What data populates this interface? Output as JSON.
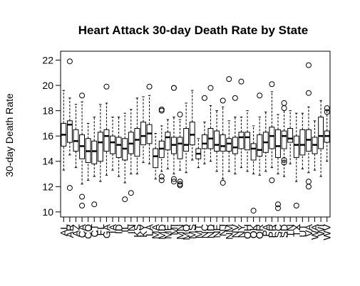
{
  "chart_data": {
    "type": "boxplot",
    "title": "Heart Attack 30-day Death Rate by State",
    "y_label": "30-day Death Rate",
    "categories": [
      "AL",
      "AR",
      "AZ",
      "CA",
      "CO",
      "CT",
      "FL",
      "GA",
      "IA",
      "ID",
      "IL",
      "IN",
      "KS",
      "KY",
      "LA",
      "MA",
      "MD",
      "ME",
      "MI",
      "MN",
      "MO",
      "MS",
      "MT",
      "NC",
      "ND",
      "NE",
      "NJ",
      "NM",
      "NV",
      "NY",
      "OH",
      "OK",
      "OR",
      "PA",
      "PR",
      "SC",
      "SD",
      "TN",
      "TX",
      "UT",
      "VA",
      "WA",
      "WI",
      "WV"
    ],
    "boxes": [
      {
        "min": 13.3,
        "q1": 15.2,
        "median": 16.1,
        "q3": 17.0,
        "max": 19.6,
        "outliers": []
      },
      {
        "min": 14.5,
        "q1": 15.5,
        "median": 16.9,
        "q3": 17.2,
        "max": 19.0,
        "outliers": [
          21.9,
          11.9
        ]
      },
      {
        "min": 13.5,
        "q1": 14.8,
        "median": 15.6,
        "q3": 16.5,
        "max": 18.5,
        "outliers": []
      },
      {
        "min": 12.2,
        "q1": 14.2,
        "median": 15.2,
        "q3": 16.1,
        "max": 18.7,
        "outliers": [
          19.2,
          11.2,
          10.5
        ]
      },
      {
        "min": 12.5,
        "q1": 13.9,
        "median": 14.8,
        "q3": 15.8,
        "max": 17.0,
        "outliers": []
      },
      {
        "min": 12.8,
        "q1": 13.8,
        "median": 14.8,
        "q3": 15.6,
        "max": 17.5,
        "outliers": [
          10.6
        ]
      },
      {
        "min": 12.4,
        "q1": 14.0,
        "median": 15.5,
        "q3": 16.3,
        "max": 18.5,
        "outliers": []
      },
      {
        "min": 12.9,
        "q1": 14.8,
        "median": 16.0,
        "q3": 16.5,
        "max": 18.6,
        "outliers": [
          19.9
        ]
      },
      {
        "min": 13.3,
        "q1": 14.6,
        "median": 15.5,
        "q3": 16.0,
        "max": 17.5,
        "outliers": []
      },
      {
        "min": 12.8,
        "q1": 14.3,
        "median": 15.3,
        "q3": 15.9,
        "max": 17.5,
        "outliers": []
      },
      {
        "min": 12.3,
        "q1": 14.1,
        "median": 15.0,
        "q3": 15.8,
        "max": 17.8,
        "outliers": [
          11.0
        ]
      },
      {
        "min": 13.0,
        "q1": 14.6,
        "median": 15.4,
        "q3": 16.3,
        "max": 18.1,
        "outliers": [
          11.5
        ]
      },
      {
        "min": 13.0,
        "q1": 14.4,
        "median": 15.7,
        "q3": 16.6,
        "max": 19.0,
        "outliers": []
      },
      {
        "min": 13.9,
        "q1": 15.3,
        "median": 16.0,
        "q3": 17.1,
        "max": 19.1,
        "outliers": []
      },
      {
        "min": 13.8,
        "q1": 15.4,
        "median": 16.2,
        "q3": 16.9,
        "max": 19.2,
        "outliers": [
          19.9
        ]
      },
      {
        "min": 12.6,
        "q1": 13.5,
        "median": 14.4,
        "q3": 15.0,
        "max": 16.2,
        "outliers": []
      },
      {
        "min": 13.2,
        "q1": 14.3,
        "median": 15.0,
        "q3": 15.6,
        "max": 16.8,
        "outliers": [
          18.1,
          18.0,
          12.8,
          12.5
        ]
      },
      {
        "min": 13.4,
        "q1": 14.9,
        "median": 15.9,
        "q3": 16.3,
        "max": 17.3,
        "outliers": []
      },
      {
        "min": 13.0,
        "q1": 14.6,
        "median": 15.3,
        "q3": 15.9,
        "max": 17.5,
        "outliers": [
          19.8,
          19.8,
          12.6,
          12.4
        ]
      },
      {
        "min": 13.3,
        "q1": 14.2,
        "median": 15.4,
        "q3": 15.9,
        "max": 17.3,
        "outliers": [
          17.7,
          12.4,
          12.2,
          12.1
        ]
      },
      {
        "min": 13.1,
        "q1": 14.8,
        "median": 15.3,
        "q3": 16.6,
        "max": 18.6,
        "outliers": []
      },
      {
        "min": 14.1,
        "q1": 15.3,
        "median": 16.1,
        "q3": 17.1,
        "max": 19.6,
        "outliers": []
      },
      {
        "min": 13.5,
        "q1": 14.2,
        "median": 14.6,
        "q3": 15.0,
        "max": 15.8,
        "outliers": []
      },
      {
        "min": 13.8,
        "q1": 15.0,
        "median": 15.4,
        "q3": 16.1,
        "max": 17.1,
        "outliers": [
          19.0
        ]
      },
      {
        "min": 14.0,
        "q1": 15.0,
        "median": 15.8,
        "q3": 16.6,
        "max": 18.4,
        "outliers": [
          19.8
        ]
      },
      {
        "min": 13.2,
        "q1": 14.8,
        "median": 15.3,
        "q3": 16.4,
        "max": 18.0,
        "outliers": []
      },
      {
        "min": 12.6,
        "q1": 14.8,
        "median": 15.2,
        "q3": 16.1,
        "max": 18.3,
        "outliers": [
          18.8,
          12.3
        ]
      },
      {
        "min": 13.2,
        "q1": 14.8,
        "median": 15.4,
        "q3": 15.8,
        "max": 17.2,
        "outliers": [
          20.5
        ]
      },
      {
        "min": 13.0,
        "q1": 14.6,
        "median": 15.1,
        "q3": 15.9,
        "max": 17.5,
        "outliers": [
          19.0
        ]
      },
      {
        "min": 13.5,
        "q1": 15.0,
        "median": 15.9,
        "q3": 16.3,
        "max": 17.5,
        "outliers": [
          20.3
        ]
      },
      {
        "min": 13.2,
        "q1": 14.9,
        "median": 15.9,
        "q3": 16.3,
        "max": 18.0,
        "outliers": []
      },
      {
        "min": 13.0,
        "q1": 14.1,
        "median": 15.0,
        "q3": 15.4,
        "max": 16.8,
        "outliers": [
          10.1
        ]
      },
      {
        "min": 12.9,
        "q1": 14.4,
        "median": 14.9,
        "q3": 16.1,
        "max": 17.5,
        "outliers": [
          19.2
        ]
      },
      {
        "min": 13.2,
        "q1": 14.7,
        "median": 15.5,
        "q3": 16.3,
        "max": 17.9,
        "outliers": []
      },
      {
        "min": 13.5,
        "q1": 15.0,
        "median": 16.0,
        "q3": 16.7,
        "max": 19.5,
        "outliers": [
          20.1,
          12.5
        ]
      },
      {
        "min": 13.0,
        "q1": 14.3,
        "median": 15.2,
        "q3": 16.5,
        "max": 17.7,
        "outliers": [
          10.6,
          10.3
        ]
      },
      {
        "min": 12.8,
        "q1": 15.0,
        "median": 16.0,
        "q3": 16.4,
        "max": 18.0,
        "outliers": [
          18.6,
          18.2,
          14.1,
          13.9
        ]
      },
      {
        "min": 13.8,
        "q1": 15.5,
        "median": 15.8,
        "q3": 16.6,
        "max": 18.0,
        "outliers": []
      },
      {
        "min": 12.4,
        "q1": 14.3,
        "median": 15.3,
        "q3": 16.0,
        "max": 17.8,
        "outliers": [
          10.5
        ]
      },
      {
        "min": 13.4,
        "q1": 14.5,
        "median": 15.3,
        "q3": 16.5,
        "max": 17.8,
        "outliers": []
      },
      {
        "min": 13.1,
        "q1": 14.8,
        "median": 15.7,
        "q3": 16.5,
        "max": 18.3,
        "outliers": [
          21.6,
          19.4,
          12.4,
          12.0
        ]
      },
      {
        "min": 13.3,
        "q1": 14.6,
        "median": 15.3,
        "q3": 15.9,
        "max": 17.2,
        "outliers": []
      },
      {
        "min": 12.8,
        "q1": 15.0,
        "median": 16.0,
        "q3": 17.5,
        "max": 18.8,
        "outliers": []
      },
      {
        "min": 14.0,
        "q1": 15.5,
        "median": 16.0,
        "q3": 16.4,
        "max": 18.0,
        "outliers": [
          18.2,
          17.9
        ]
      }
    ],
    "ylim": [
      9.6,
      22.7
    ],
    "yticks": [
      10,
      12,
      14,
      16,
      18,
      20,
      22
    ]
  }
}
